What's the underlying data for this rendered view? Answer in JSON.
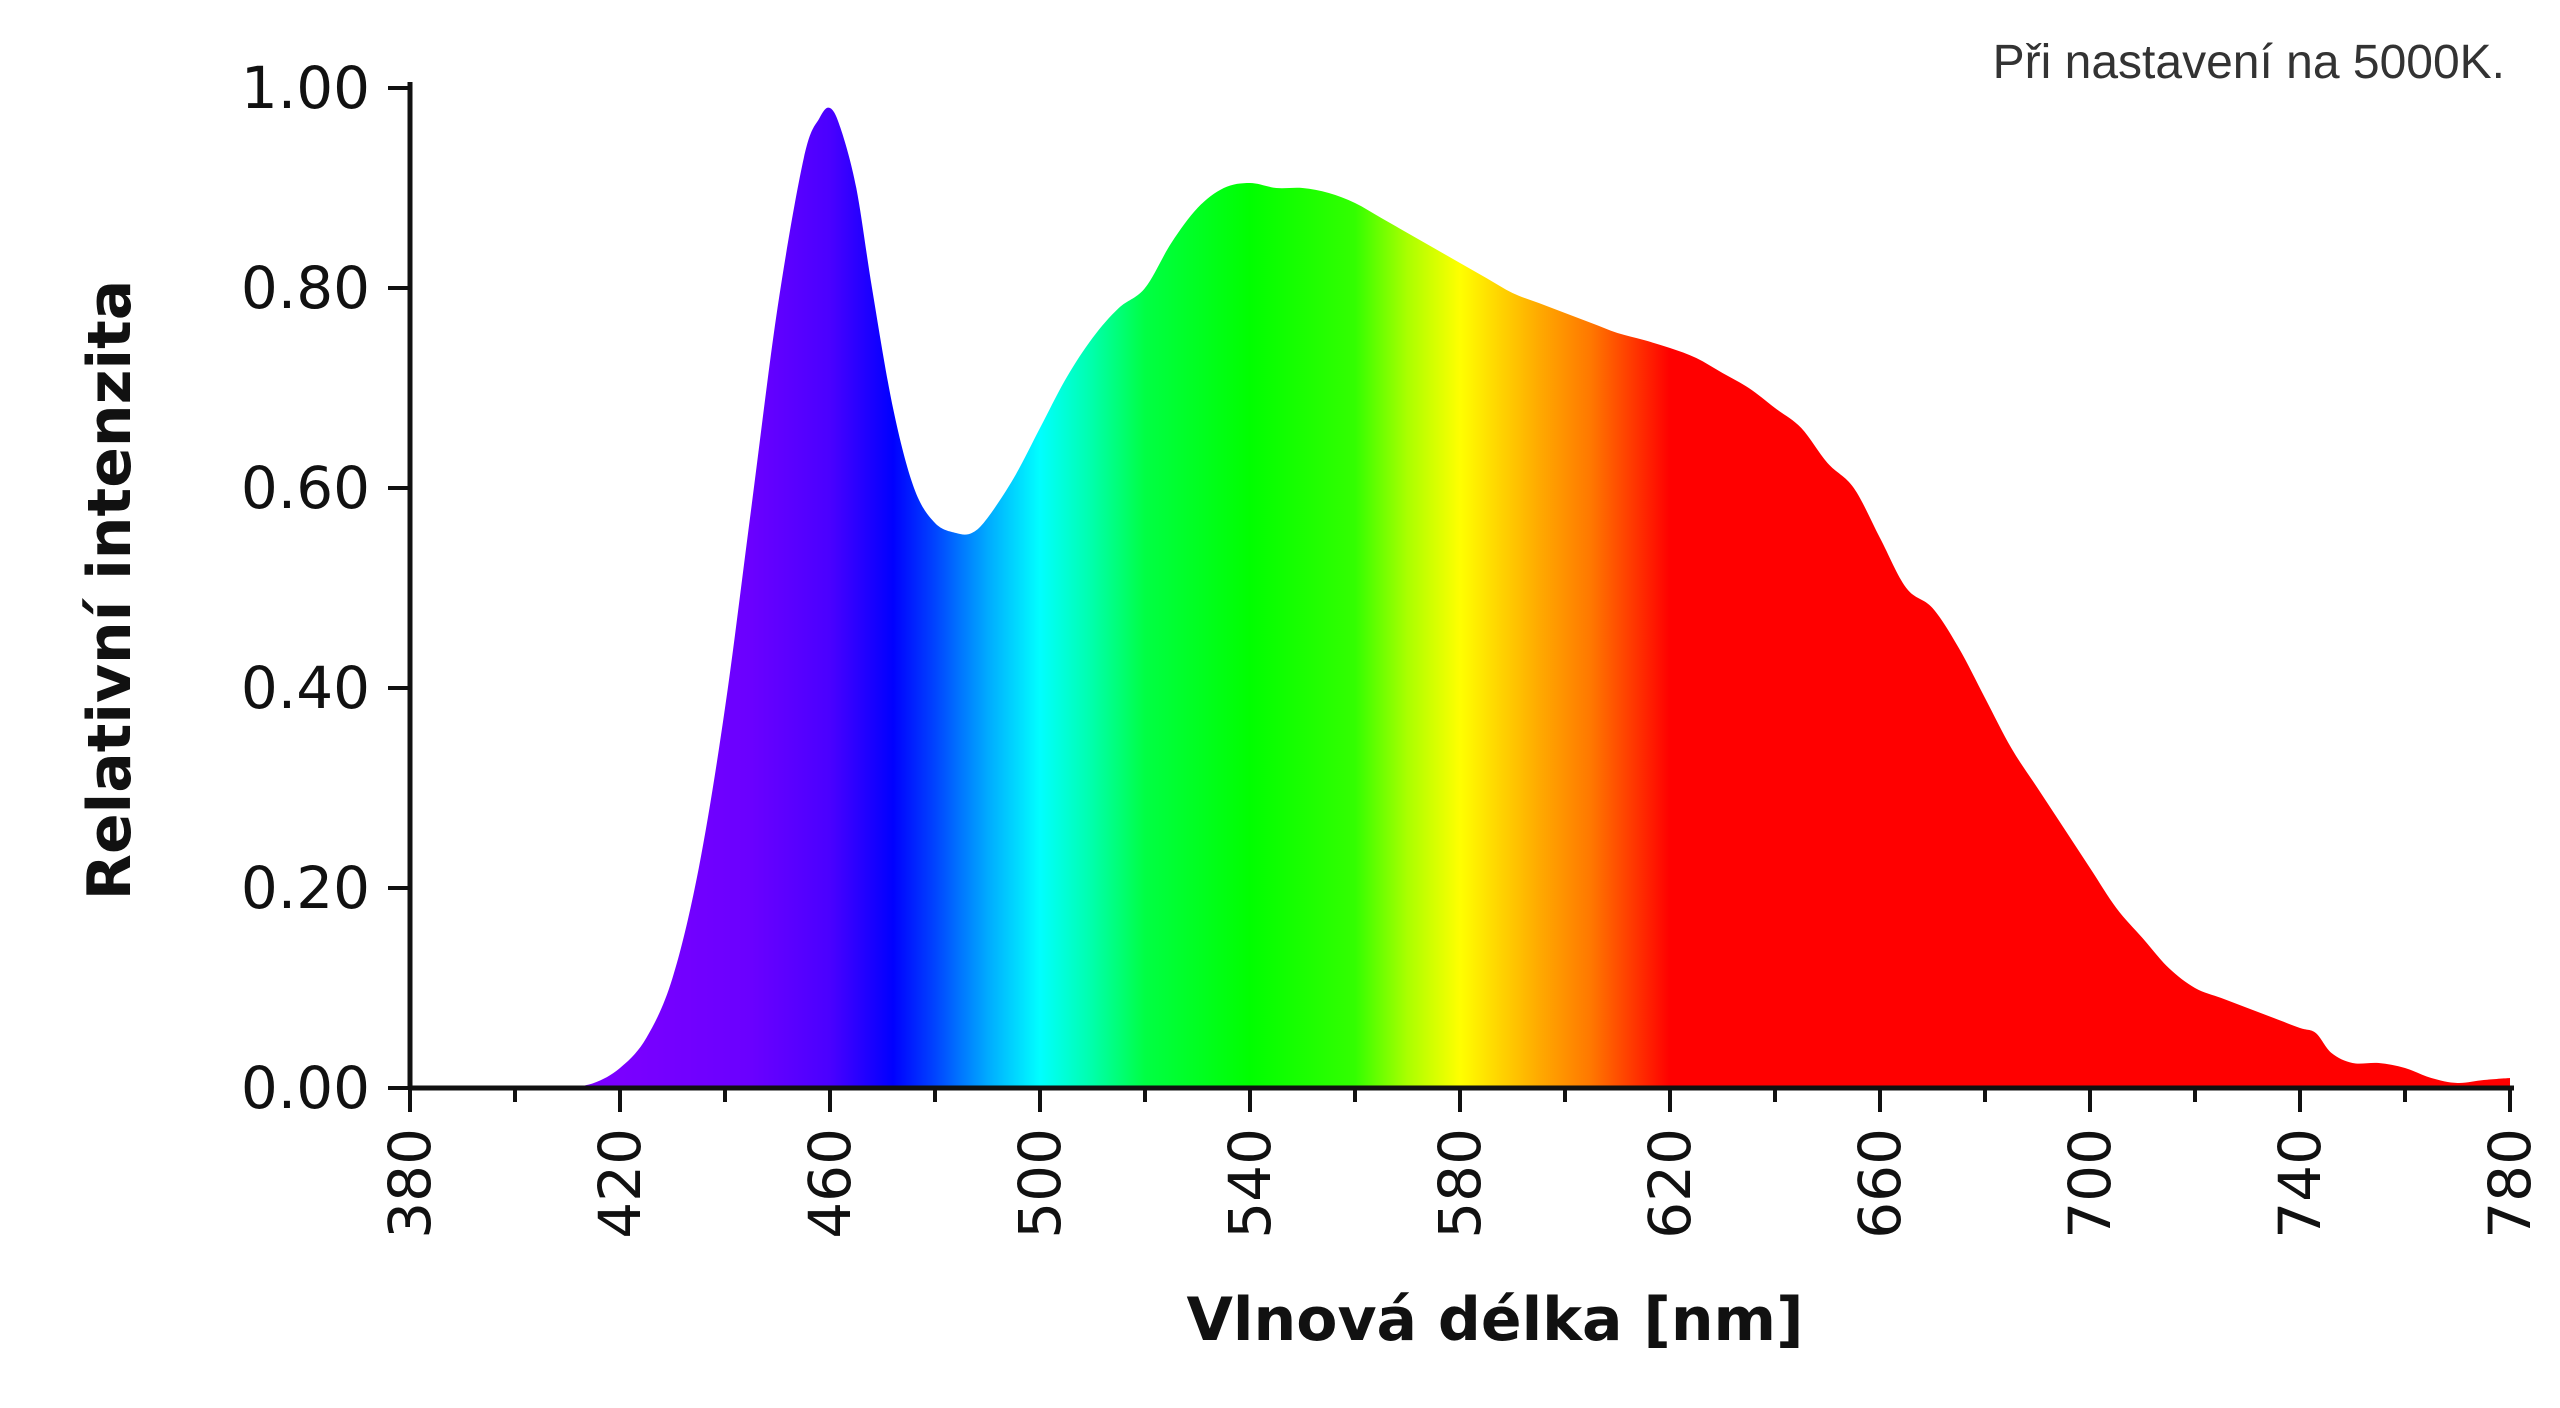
{
  "note": "Při nastavení na 5000K.",
  "chart_data": {
    "type": "area",
    "xlabel": "Vlnová délka [nm]",
    "ylabel": "Relativní intenzita",
    "xlim": [
      380,
      780
    ],
    "ylim": [
      0,
      1
    ],
    "x_ticks": [
      380,
      420,
      460,
      500,
      540,
      580,
      620,
      660,
      700,
      740,
      780
    ],
    "x_tick_labels": [
      "380",
      "420",
      "460",
      "500",
      "540",
      "580",
      "620",
      "660",
      "700",
      "740",
      "780"
    ],
    "y_ticks": [
      0,
      0.2,
      0.4,
      0.6,
      0.8,
      1.0
    ],
    "y_tick_labels": [
      "0.00",
      "0.20",
      "0.40",
      "0.60",
      "0.80",
      "1.00"
    ],
    "grid": false,
    "fill": "visible-spectrum gradient",
    "x": [
      410,
      415,
      420,
      425,
      430,
      435,
      440,
      445,
      450,
      455,
      458,
      460,
      462,
      465,
      468,
      472,
      476,
      480,
      484,
      487,
      490,
      495,
      500,
      505,
      510,
      515,
      520,
      525,
      530,
      535,
      540,
      545,
      550,
      555,
      560,
      565,
      570,
      575,
      580,
      585,
      590,
      595,
      600,
      605,
      610,
      615,
      620,
      625,
      630,
      635,
      640,
      645,
      650,
      655,
      660,
      665,
      670,
      675,
      680,
      685,
      690,
      695,
      700,
      705,
      710,
      715,
      720,
      725,
      730,
      735,
      740,
      743,
      746,
      750,
      755,
      760,
      765,
      770,
      775,
      780
    ],
    "y": [
      0.0,
      0.005,
      0.02,
      0.05,
      0.11,
      0.22,
      0.38,
      0.58,
      0.78,
      0.93,
      0.97,
      0.98,
      0.96,
      0.9,
      0.8,
      0.68,
      0.6,
      0.565,
      0.555,
      0.555,
      0.57,
      0.61,
      0.66,
      0.71,
      0.75,
      0.78,
      0.8,
      0.845,
      0.88,
      0.9,
      0.905,
      0.9,
      0.9,
      0.895,
      0.885,
      0.87,
      0.855,
      0.84,
      0.825,
      0.81,
      0.795,
      0.785,
      0.775,
      0.765,
      0.755,
      0.748,
      0.74,
      0.73,
      0.715,
      0.7,
      0.68,
      0.66,
      0.625,
      0.6,
      0.55,
      0.5,
      0.48,
      0.44,
      0.39,
      0.34,
      0.3,
      0.26,
      0.22,
      0.18,
      0.15,
      0.12,
      0.1,
      0.09,
      0.08,
      0.07,
      0.06,
      0.055,
      0.035,
      0.025,
      0.025,
      0.02,
      0.01,
      0.005,
      0.008,
      0.01
    ]
  },
  "colors": {
    "spectrum_stops": [
      {
        "nm": 420,
        "color": "#7a00ff"
      },
      {
        "nm": 445,
        "color": "#6a00ff"
      },
      {
        "nm": 460,
        "color": "#4a00ff"
      },
      {
        "nm": 472,
        "color": "#0000ff"
      },
      {
        "nm": 480,
        "color": "#0044ff"
      },
      {
        "nm": 490,
        "color": "#00aaff"
      },
      {
        "nm": 500,
        "color": "#00ffff"
      },
      {
        "nm": 510,
        "color": "#00ffaa"
      },
      {
        "nm": 520,
        "color": "#00ff44"
      },
      {
        "nm": 540,
        "color": "#00ff00"
      },
      {
        "nm": 560,
        "color": "#33ff00"
      },
      {
        "nm": 570,
        "color": "#aaff00"
      },
      {
        "nm": 580,
        "color": "#ffff00"
      },
      {
        "nm": 595,
        "color": "#ffaa00"
      },
      {
        "nm": 605,
        "color": "#ff7700"
      },
      {
        "nm": 620,
        "color": "#ff0000"
      },
      {
        "nm": 780,
        "color": "#ff0000"
      }
    ],
    "axis": "#111111"
  }
}
